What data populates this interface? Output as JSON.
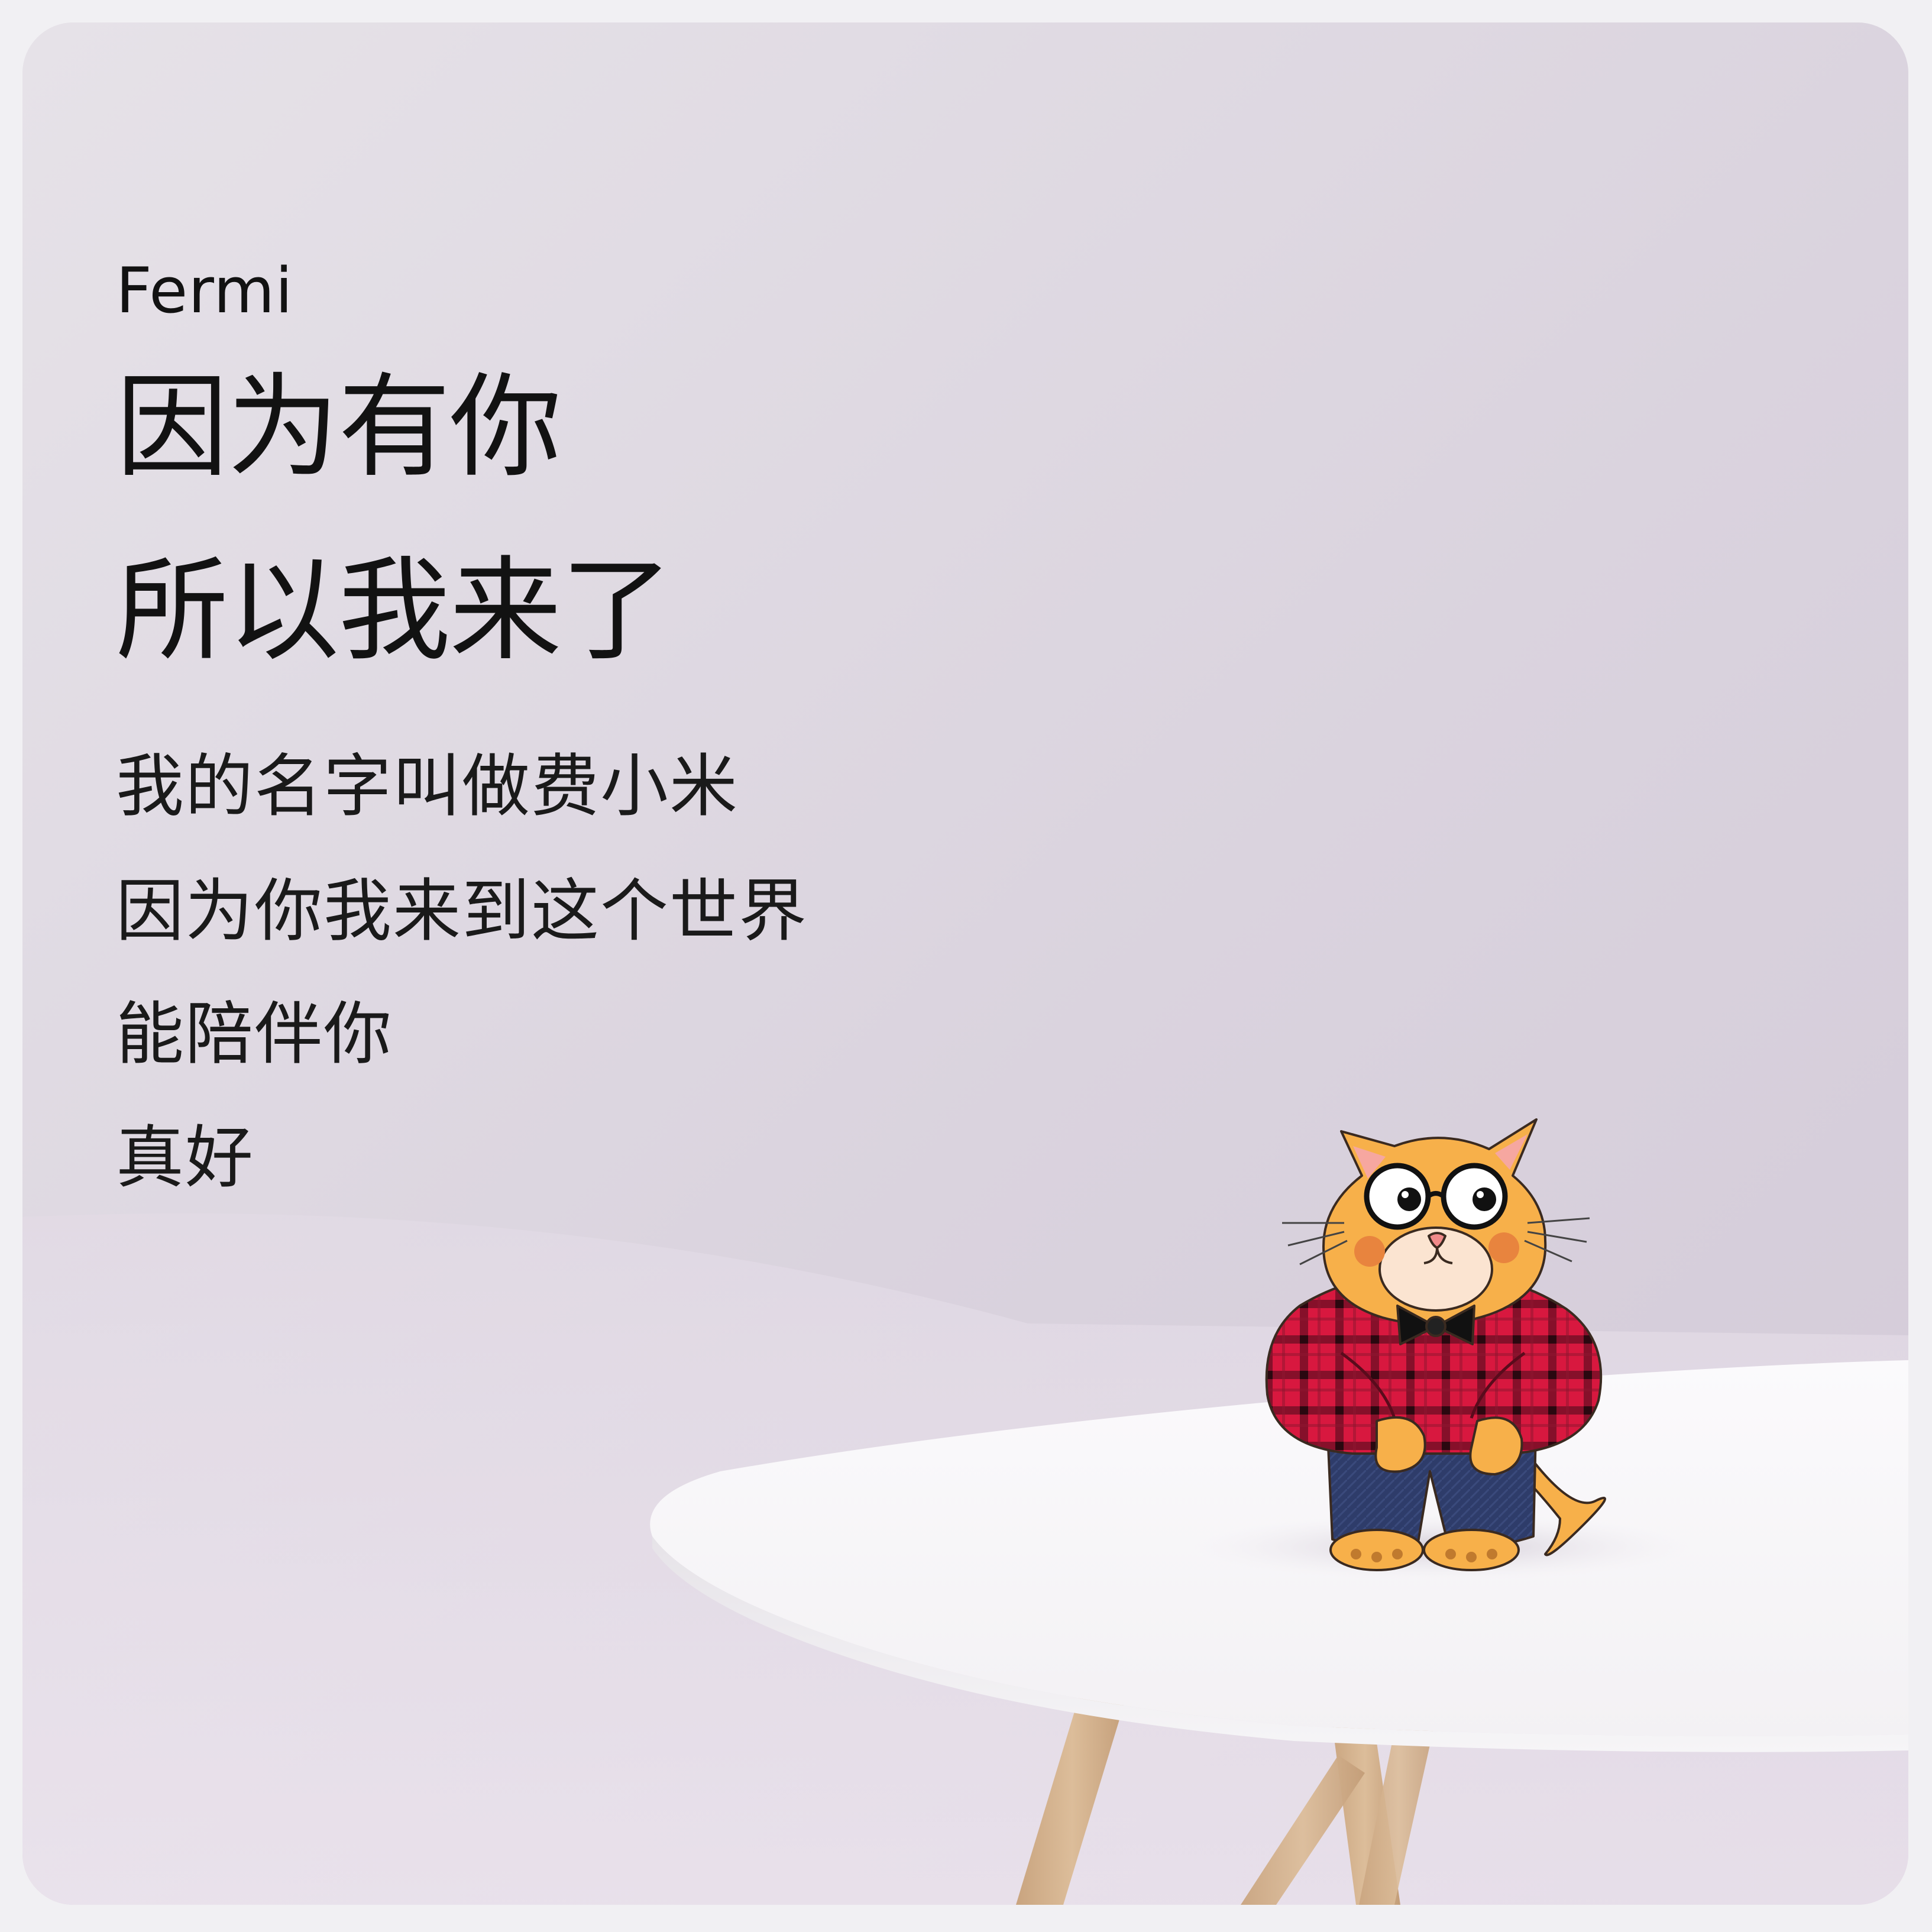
{
  "brand": "Fermi",
  "headline": {
    "line1": "因为有你",
    "line2": "所以我来了"
  },
  "body": {
    "line1": "我的名字叫做费小米",
    "line2": "因为你我来到这个世界",
    "line3": "能陪伴你",
    "line4": "真好"
  },
  "colors": {
    "background": "#ddd6e0",
    "text": "#121212",
    "table_top": "#f9f8fa",
    "table_leg": "#d6b592",
    "cat_fur": "#f7b04a",
    "shirt": "#d11a43",
    "pants": "#2c3a66"
  },
  "illustration": "cat-mascot-with-glasses-bowtie-plaid-shirt-on-white-table"
}
